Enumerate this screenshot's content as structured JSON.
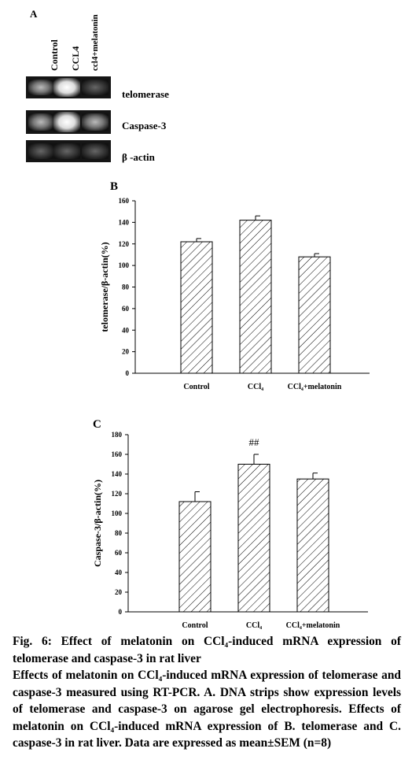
{
  "panel_a": {
    "letter": "A",
    "lanes": [
      "Control",
      "CCL4",
      "ccl4+melatonin"
    ],
    "rows": [
      "telomerase",
      "Caspase-3",
      "β -actin"
    ]
  },
  "chart_data": [
    {
      "type": "bar",
      "letter": "B",
      "y_label": "telomerase/β-actin(%)",
      "categories": [
        "Control",
        "CCl₄",
        "CCl₄+melatonin"
      ],
      "values": [
        122,
        142,
        108
      ],
      "errors": [
        3,
        4,
        3
      ],
      "color": "#000000",
      "ylim": [
        0,
        160
      ],
      "yticks": [
        0,
        20,
        40,
        60,
        80,
        100,
        120,
        140,
        160
      ]
    },
    {
      "type": "bar",
      "letter": "C",
      "y_label": "Caspase-3/β-actin(%)",
      "categories": [
        "Control",
        "CCl₄",
        "CCl₄+melatonin"
      ],
      "values": [
        112,
        150,
        135
      ],
      "errors": [
        10,
        10,
        6
      ],
      "color": "#000000",
      "ylim": [
        0,
        180
      ],
      "yticks": [
        0,
        20,
        40,
        60,
        80,
        100,
        120,
        140,
        160,
        180
      ],
      "annotation": "##"
    }
  ],
  "caption": {
    "title": "Fig. 6: Effect of melatonin on CCl₄-induced mRNA expression of telomerase and caspase-3 in rat liver",
    "body": "Effects of melatonin on CCl₄-induced mRNA expression of telomerase and caspase-3 measured using RT-PCR. A. DNA strips show expression levels of telomerase and caspase-3 on agarose gel electrophoresis. Effects of melatonin on CCl₄-induced mRNA expression of B. telomerase and C. caspase-3 in rat liver. Data are expressed as mean±SEM (n=8)"
  }
}
